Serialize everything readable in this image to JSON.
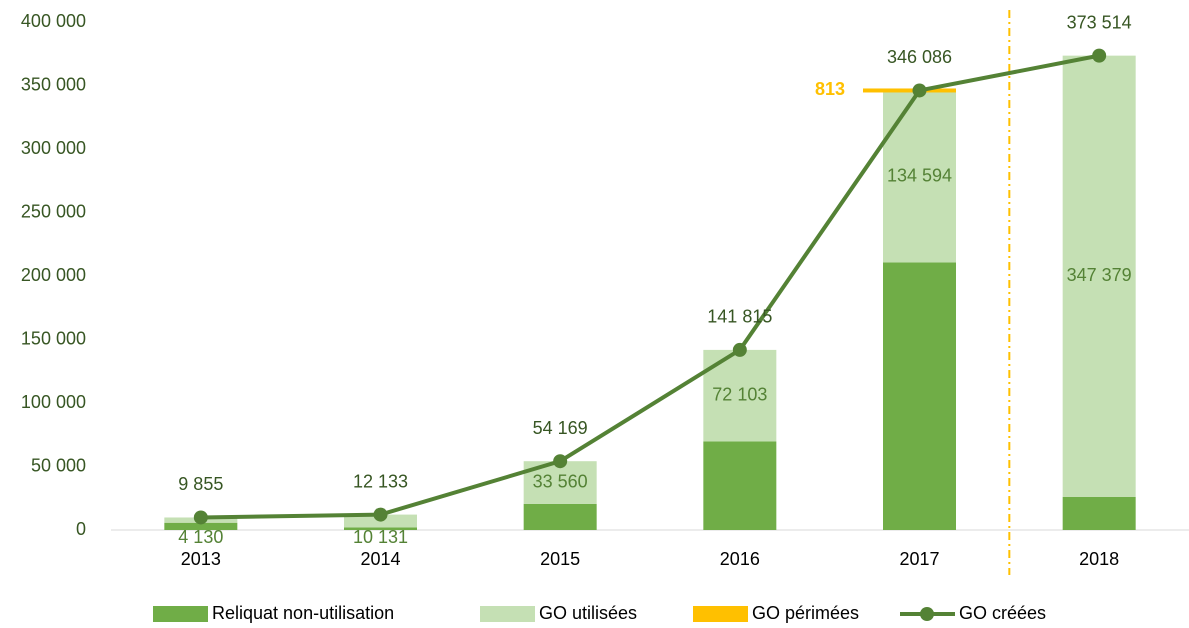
{
  "chart_data": {
    "type": "bar",
    "categories": [
      "2013",
      "2014",
      "2015",
      "2016",
      "2017",
      "2018"
    ],
    "series": [
      {
        "name": "Reliquat non-utilisation",
        "color": "#70ad47",
        "values": [
          5725,
          2002,
          20609,
          69712,
          210679,
          26135
        ]
      },
      {
        "name": "GO utilisées",
        "color": "#c5e0b4",
        "values": [
          4130,
          10131,
          33560,
          72103,
          134594,
          347379
        ],
        "value_labels": [
          "4 130",
          "10 131",
          "33 560",
          "72 103",
          "134 594",
          "347 379"
        ]
      },
      {
        "name": "GO périmées",
        "color": "#ffc000",
        "values": [
          null,
          null,
          null,
          null,
          813,
          null
        ]
      },
      {
        "name": "GO créées",
        "color": "#548235",
        "type": "line",
        "values": [
          9855,
          12133,
          54169,
          141815,
          346086,
          373514
        ],
        "value_labels": [
          "9 855",
          "12 133",
          "54 169",
          "141 815",
          "346 086",
          "373 514"
        ]
      }
    ],
    "ylim": [
      0,
      400000
    ],
    "yticks": [
      0,
      {
        "value": 50000,
        "label": "50 000"
      },
      {
        "value": 100000,
        "label": "100 000"
      },
      {
        "value": 150000,
        "label": "150 000"
      },
      {
        "value": 200000,
        "label": "200 000"
      },
      {
        "value": 250000,
        "label": "250 000"
      },
      {
        "value": 300000,
        "label": "300 000"
      },
      {
        "value": 350000,
        "label": "350 000"
      },
      {
        "value": 400000,
        "label": "400 000"
      }
    ],
    "grid": false,
    "legend": "bottom"
  }
}
